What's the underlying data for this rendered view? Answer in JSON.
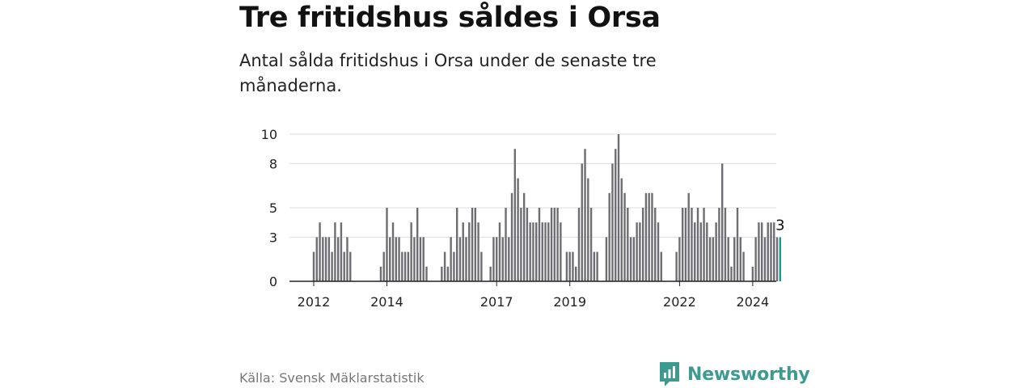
{
  "title": "Tre fritidshus såldes i Orsa",
  "subtitle": "Antal sålda fritidshus i Orsa under de senaste tre månaderna.",
  "source": "Källa: Svensk Mäklarstatistik",
  "brand": "Newsworthy",
  "colors": {
    "bar": "#6d6d72",
    "highlight": "#1a9a8c",
    "grid": "#dddddd",
    "axis": "#222222",
    "brand": "#3d9a8e"
  },
  "chart_data": {
    "type": "bar",
    "title": "Tre fritidshus såldes i Orsa",
    "xlabel": "",
    "ylabel": "",
    "ylim": [
      0,
      10
    ],
    "yticks": [
      0,
      3,
      5,
      8,
      10
    ],
    "xticks": [
      {
        "label": "2012",
        "index": 0
      },
      {
        "label": "2014",
        "index": 24
      },
      {
        "label": "2017",
        "index": 60
      },
      {
        "label": "2019",
        "index": 84
      },
      {
        "label": "2022",
        "index": 120
      },
      {
        "label": "2024",
        "index": 144
      }
    ],
    "start": "2012-01",
    "values": [
      2,
      3,
      4,
      3,
      3,
      3,
      2,
      4,
      3,
      4,
      2,
      3,
      2,
      0,
      0,
      0,
      0,
      0,
      0,
      0,
      0,
      0,
      1,
      2,
      5,
      3,
      4,
      3,
      3,
      2,
      2,
      2,
      4,
      3,
      5,
      3,
      3,
      1,
      0,
      0,
      0,
      0,
      1,
      2,
      1,
      3,
      2,
      5,
      3,
      4,
      3,
      4,
      5,
      5,
      4,
      2,
      0,
      0,
      1,
      3,
      3,
      4,
      3,
      5,
      3,
      6,
      9,
      7,
      5,
      6,
      5,
      4,
      4,
      4,
      5,
      4,
      4,
      4,
      5,
      5,
      5,
      4,
      0,
      2,
      2,
      2,
      1,
      5,
      8,
      9,
      7,
      5,
      2,
      2,
      0,
      0,
      3,
      6,
      8,
      9,
      10,
      7,
      6,
      5,
      3,
      3,
      4,
      4,
      5,
      6,
      6,
      6,
      5,
      4,
      2,
      0,
      0,
      0,
      0,
      2,
      3,
      5,
      5,
      6,
      5,
      4,
      5,
      4,
      5,
      4,
      3,
      3,
      4,
      5,
      8,
      5,
      3,
      1,
      3,
      5,
      3,
      2,
      0,
      0,
      1,
      3,
      4,
      4,
      3,
      4,
      4,
      4,
      3,
      3
    ],
    "last_value_label": "3"
  }
}
